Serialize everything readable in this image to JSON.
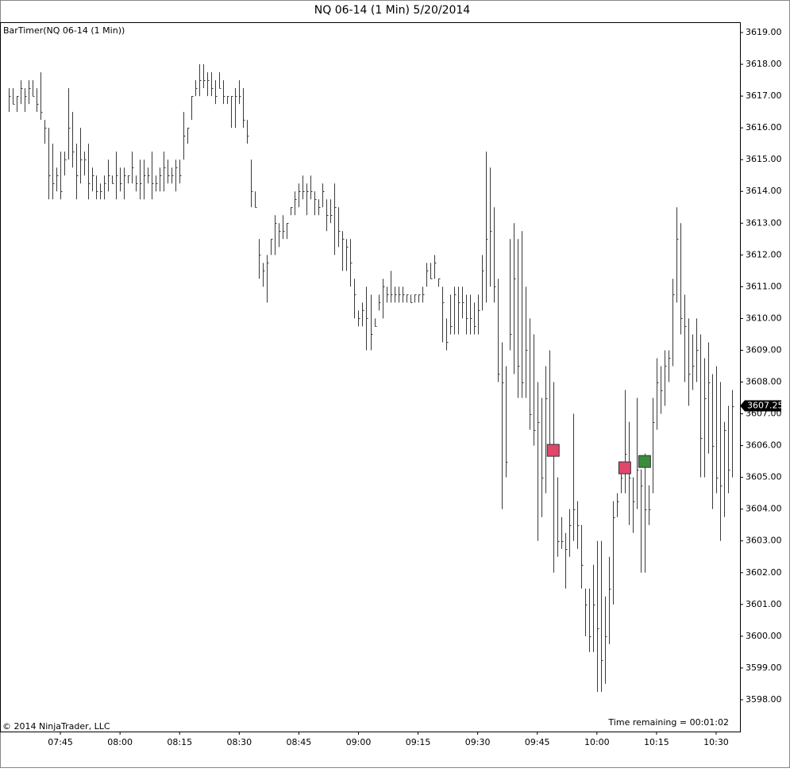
{
  "chart_data": {
    "type": "ohlc",
    "title": "NQ 06-14 (1 Min)  5/20/2014",
    "indicator_label": "BarTimer(NQ 06-14 (1 Min))",
    "copyright": "© 2014 NinjaTrader, LLC",
    "time_remaining": "Time remaining = 00:01:02",
    "x": [
      "07:32",
      "07:33",
      "07:34",
      "07:35",
      "07:36",
      "07:37",
      "07:38",
      "07:39",
      "07:40",
      "07:41",
      "07:42",
      "07:43",
      "07:44",
      "07:45",
      "07:46",
      "07:47",
      "07:48",
      "07:49",
      "07:50",
      "07:51",
      "07:52",
      "07:53",
      "07:54",
      "07:55",
      "07:56",
      "07:57",
      "07:58",
      "07:59",
      "08:00",
      "08:01",
      "08:02",
      "08:03",
      "08:04",
      "08:05",
      "08:06",
      "08:07",
      "08:08",
      "08:09",
      "08:10",
      "08:11",
      "08:12",
      "08:13",
      "08:14",
      "08:15",
      "08:16",
      "08:17",
      "08:18",
      "08:19",
      "08:20",
      "08:21",
      "08:22",
      "08:23",
      "08:24",
      "08:25",
      "08:26",
      "08:27",
      "08:28",
      "08:29",
      "08:30",
      "08:31",
      "08:32",
      "08:33",
      "08:34",
      "08:35",
      "08:36",
      "08:37",
      "08:38",
      "08:39",
      "08:40",
      "08:41",
      "08:42",
      "08:43",
      "08:44",
      "08:45",
      "08:46",
      "08:47",
      "08:48",
      "08:49",
      "08:50",
      "08:51",
      "08:52",
      "08:53",
      "08:54",
      "08:55",
      "08:56",
      "08:57",
      "08:58",
      "08:59",
      "09:00",
      "09:01",
      "09:02",
      "09:03",
      "09:04",
      "09:05",
      "09:06",
      "09:07",
      "09:08",
      "09:09",
      "09:10",
      "09:11",
      "09:12",
      "09:13",
      "09:14",
      "09:15",
      "09:16",
      "09:17",
      "09:18",
      "09:19",
      "09:20",
      "09:21",
      "09:22",
      "09:23",
      "09:24",
      "09:25",
      "09:26",
      "09:27",
      "09:28",
      "09:29",
      "09:30",
      "09:31",
      "09:32",
      "09:33",
      "09:34",
      "09:35",
      "09:36",
      "09:37",
      "09:38",
      "09:39",
      "09:40",
      "09:41",
      "09:42",
      "09:43",
      "09:44",
      "09:45",
      "09:46",
      "09:47",
      "09:48",
      "09:49",
      "09:50",
      "09:51",
      "09:52",
      "09:53",
      "09:54",
      "09:55",
      "09:56",
      "09:57",
      "09:58",
      "09:59",
      "10:00",
      "10:01",
      "10:02",
      "10:03",
      "10:04",
      "10:05",
      "10:06",
      "10:07",
      "10:08",
      "10:09",
      "10:10",
      "10:11",
      "10:12",
      "10:13",
      "10:14",
      "10:15",
      "10:16",
      "10:17",
      "10:18",
      "10:19",
      "10:20",
      "10:21",
      "10:22",
      "10:23",
      "10:24",
      "10:25",
      "10:26",
      "10:27",
      "10:28",
      "10:29",
      "10:30",
      "10:31",
      "10:32",
      "10:33",
      "10:34"
    ],
    "high": [
      3617.25,
      3617.25,
      3617.0,
      3617.5,
      3617.25,
      3617.5,
      3617.5,
      3617.25,
      3617.75,
      3616.25,
      3616.0,
      3615.5,
      3614.75,
      3615.25,
      3615.25,
      3617.25,
      3616.5,
      3615.5,
      3616.0,
      3615.25,
      3615.5,
      3614.75,
      3614.5,
      3614.25,
      3614.5,
      3615.0,
      3614.5,
      3615.25,
      3614.75,
      3614.75,
      3614.5,
      3615.25,
      3614.5,
      3615.0,
      3615.0,
      3614.75,
      3615.25,
      3614.5,
      3614.75,
      3615.25,
      3615.0,
      3614.75,
      3615.0,
      3615.0,
      3616.5,
      3616.0,
      3617.0,
      3617.5,
      3618.0,
      3618.0,
      3617.75,
      3617.75,
      3617.5,
      3617.75,
      3617.5,
      3617.0,
      3617.0,
      3617.25,
      3617.5,
      3617.25,
      3616.25,
      3615.0,
      3614.0,
      3612.5,
      3611.75,
      3612.0,
      3612.5,
      3613.25,
      3613.0,
      3613.25,
      3613.0,
      3613.5,
      3614.0,
      3614.25,
      3614.5,
      3614.25,
      3614.5,
      3614.0,
      3613.75,
      3614.25,
      3613.75,
      3613.75,
      3614.25,
      3613.5,
      3612.75,
      3612.5,
      3612.5,
      3611.25,
      3610.25,
      3610.5,
      3611.0,
      3610.75,
      3610.0,
      3610.75,
      3611.25,
      3611.0,
      3611.5,
      3611.0,
      3611.0,
      3611.0,
      3610.75,
      3610.75,
      3610.75,
      3610.75,
      3611.0,
      3611.75,
      3611.75,
      3612.0,
      3611.25,
      3611.0,
      3610.0,
      3610.75,
      3611.0,
      3611.0,
      3611.0,
      3610.75,
      3610.75,
      3610.5,
      3610.75,
      3612.0,
      3615.25,
      3614.75,
      3613.5,
      3611.25,
      3609.25,
      3608.5,
      3612.5,
      3613.0,
      3612.5,
      3612.75,
      3611.0,
      3610.0,
      3609.5,
      3608.0,
      3607.5,
      3608.5,
      3609.0,
      3608.0,
      3605.0,
      3603.75,
      3603.25,
      3604.0,
      3607.0,
      3604.25,
      3603.5,
      3601.5,
      3601.5,
      3602.25,
      3603.0,
      3603.0,
      3601.25,
      3602.5,
      3604.25,
      3604.5,
      3605.5,
      3607.75,
      3606.75,
      3605.0,
      3607.5,
      3605.25,
      3605.75,
      3604.75,
      3607.5,
      3608.75,
      3608.5,
      3609.0,
      3609.0,
      3611.25,
      3613.5,
      3613.0,
      3610.75,
      3610.0,
      3609.5,
      3610.0,
      3609.5,
      3608.75,
      3609.25,
      3608.25,
      3608.5,
      3608.0,
      3606.75,
      3607.25,
      3607.75
    ],
    "low": [
      3616.5,
      3616.75,
      3616.5,
      3616.75,
      3616.5,
      3616.75,
      3617.0,
      3616.5,
      3616.25,
      3615.5,
      3613.75,
      3613.75,
      3614.0,
      3613.75,
      3614.5,
      3615.0,
      3614.75,
      3613.75,
      3614.25,
      3614.5,
      3613.75,
      3614.0,
      3613.75,
      3613.75,
      3613.75,
      3614.0,
      3614.25,
      3613.75,
      3614.0,
      3613.75,
      3614.25,
      3614.25,
      3614.0,
      3613.75,
      3613.75,
      3614.25,
      3613.75,
      3614.0,
      3614.0,
      3614.0,
      3614.25,
      3614.25,
      3614.0,
      3614.25,
      3615.0,
      3615.5,
      3616.25,
      3617.0,
      3617.0,
      3617.25,
      3617.0,
      3617.0,
      3616.75,
      3617.25,
      3616.75,
      3616.75,
      3616.0,
      3616.0,
      3616.75,
      3616.0,
      3615.5,
      3613.5,
      3613.5,
      3611.25,
      3611.0,
      3610.5,
      3612.0,
      3612.0,
      3612.25,
      3612.5,
      3612.5,
      3613.25,
      3613.25,
      3613.5,
      3613.75,
      3613.25,
      3613.75,
      3613.25,
      3613.25,
      3613.5,
      3612.75,
      3613.0,
      3612.0,
      3612.25,
      3611.5,
      3611.5,
      3611.0,
      3610.0,
      3609.75,
      3609.75,
      3609.0,
      3609.0,
      3609.75,
      3610.25,
      3610.0,
      3610.5,
      3610.5,
      3610.5,
      3610.5,
      3610.5,
      3610.5,
      3610.5,
      3610.5,
      3610.5,
      3610.5,
      3611.0,
      3611.25,
      3611.25,
      3611.0,
      3609.25,
      3609.0,
      3609.5,
      3609.5,
      3609.5,
      3610.0,
      3609.5,
      3609.5,
      3609.5,
      3609.5,
      3610.25,
      3610.5,
      3611.0,
      3610.5,
      3608.0,
      3604.0,
      3605.0,
      3609.0,
      3608.25,
      3607.5,
      3607.5,
      3607.5,
      3606.5,
      3606.0,
      3603.0,
      3603.75,
      3604.5,
      3605.75,
      3602.0,
      3602.5,
      3602.75,
      3601.5,
      3602.5,
      3603.0,
      3602.75,
      3601.5,
      3600.0,
      3599.5,
      3599.5,
      3598.25,
      3598.25,
      3598.5,
      3599.75,
      3601.0,
      3603.75,
      3604.5,
      3604.5,
      3603.5,
      3603.25,
      3604.0,
      3602.0,
      3602.0,
      3603.5,
      3604.5,
      3606.5,
      3607.0,
      3607.25,
      3608.0,
      3608.5,
      3610.5,
      3609.5,
      3608.0,
      3607.25,
      3607.75,
      3608.0,
      3605.0,
      3605.0,
      3605.75,
      3604.0,
      3604.5,
      3603.0,
      3603.75,
      3604.5,
      3605.0
    ],
    "close": [
      3617.0,
      3616.75,
      3617.0,
      3617.25,
      3617.0,
      3617.25,
      3617.0,
      3616.75,
      3616.5,
      3616.0,
      3614.5,
      3614.25,
      3614.5,
      3614.0,
      3615.0,
      3616.0,
      3615.25,
      3614.5,
      3615.0,
      3615.0,
      3614.25,
      3614.5,
      3614.0,
      3614.0,
      3614.25,
      3614.5,
      3614.25,
      3614.5,
      3614.25,
      3614.5,
      3614.5,
      3614.75,
      3614.25,
      3614.25,
      3614.5,
      3614.5,
      3614.25,
      3614.25,
      3614.5,
      3614.75,
      3614.5,
      3614.5,
      3614.75,
      3614.5,
      3615.75,
      3616.0,
      3617.0,
      3617.25,
      3617.5,
      3617.5,
      3617.5,
      3617.25,
      3617.0,
      3617.25,
      3617.0,
      3617.0,
      3617.0,
      3617.0,
      3617.0,
      3616.25,
      3615.75,
      3614.0,
      3613.5,
      3612.0,
      3611.5,
      3611.75,
      3612.5,
      3613.0,
      3612.75,
      3612.75,
      3613.0,
      3613.5,
      3613.75,
      3614.0,
      3614.0,
      3614.0,
      3614.0,
      3613.75,
      3613.5,
      3614.0,
      3613.25,
      3613.25,
      3613.5,
      3612.75,
      3612.5,
      3612.25,
      3611.75,
      3610.75,
      3610.0,
      3610.25,
      3610.0,
      3609.5,
      3609.75,
      3610.5,
      3611.0,
      3610.75,
      3610.75,
      3610.75,
      3610.75,
      3610.75,
      3610.75,
      3610.5,
      3610.75,
      3610.75,
      3610.75,
      3611.5,
      3611.25,
      3611.75,
      3611.25,
      3610.5,
      3609.25,
      3609.75,
      3610.75,
      3610.5,
      3610.5,
      3610.0,
      3610.0,
      3609.75,
      3610.25,
      3611.5,
      3612.5,
      3612.75,
      3611.0,
      3608.25,
      3608.0,
      3605.5,
      3609.5,
      3611.25,
      3608.5,
      3608.0,
      3609.0,
      3607.0,
      3606.5,
      3606.75,
      3605.0,
      3607.5,
      3606.0,
      3605.75,
      3603.0,
      3603.0,
      3602.75,
      3603.5,
      3604.0,
      3603.5,
      3602.25,
      3601.0,
      3600.0,
      3601.0,
      3600.25,
      3599.25,
      3600.0,
      3601.5,
      3603.75,
      3604.25,
      3605.0,
      3605.75,
      3605.0,
      3604.25,
      3605.25,
      3604.75,
      3604.0,
      3604.0,
      3606.75,
      3608.0,
      3607.75,
      3608.5,
      3608.75,
      3610.75,
      3612.5,
      3610.0,
      3609.75,
      3608.25,
      3608.5,
      3609.0,
      3606.25,
      3607.5,
      3608.0,
      3606.0,
      3605.0,
      3604.75,
      3606.5,
      3605.25,
      3607.25
    ],
    "bar_color": "#3a3a3a",
    "markers": [
      {
        "x": "09:49",
        "y": 3605.85,
        "color": "#e0476b"
      },
      {
        "x": "10:07",
        "y": 3605.3,
        "color": "#e0476b"
      },
      {
        "x": "10:12",
        "y": 3605.5,
        "color": "#3b8c3b"
      }
    ],
    "last_price": 3607.25,
    "xlim": [
      "07:30",
      "10:36"
    ],
    "xticks": [
      "07:45",
      "08:00",
      "08:15",
      "08:30",
      "08:45",
      "09:00",
      "09:15",
      "09:30",
      "09:45",
      "10:00",
      "10:15",
      "10:30"
    ],
    "ylim": [
      3597,
      3619.3
    ],
    "yticks": [
      {
        "value": 3598,
        "label": "3598.00"
      },
      {
        "value": 3599,
        "label": "3599.00"
      },
      {
        "value": 3600,
        "label": "3600.00"
      },
      {
        "value": 3601,
        "label": "3601.00"
      },
      {
        "value": 3602,
        "label": "3602.00"
      },
      {
        "value": 3603,
        "label": "3603.00"
      },
      {
        "value": 3604,
        "label": "3604.00"
      },
      {
        "value": 3605,
        "label": "3605.00"
      },
      {
        "value": 3606,
        "label": "3606.00"
      },
      {
        "value": 3607,
        "label": "3607.00"
      },
      {
        "value": 3608,
        "label": "3608.00"
      },
      {
        "value": 3609,
        "label": "3609.00"
      },
      {
        "value": 3610,
        "label": "3610.00"
      },
      {
        "value": 3611,
        "label": "3611.00"
      },
      {
        "value": 3612,
        "label": "3612.00"
      },
      {
        "value": 3613,
        "label": "3613.00"
      },
      {
        "value": 3614,
        "label": "3614.00"
      },
      {
        "value": 3615,
        "label": "3615.00"
      },
      {
        "value": 3616,
        "label": "3616.00"
      },
      {
        "value": 3617,
        "label": "3617.00"
      },
      {
        "value": 3618,
        "label": "3618.00"
      },
      {
        "value": 3619,
        "label": "3619.00"
      }
    ],
    "grid": false
  }
}
